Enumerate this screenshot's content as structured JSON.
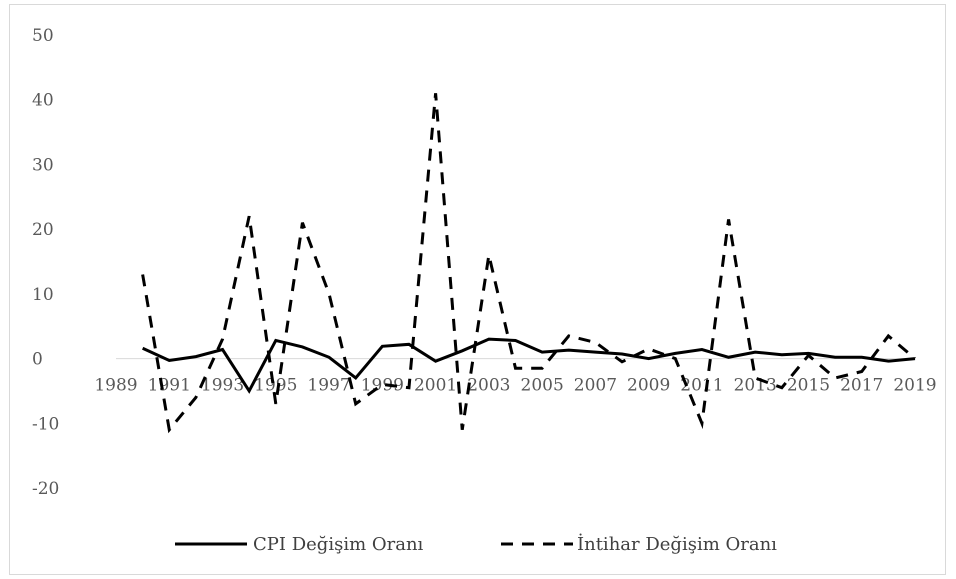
{
  "chart_data": {
    "type": "line",
    "title": "",
    "xlabel": "",
    "ylabel": "",
    "ylim": [
      -20,
      50
    ],
    "yticks": [
      -20,
      -10,
      0,
      10,
      20,
      30,
      40,
      50
    ],
    "x": [
      1990,
      1991,
      1992,
      1993,
      1994,
      1995,
      1996,
      1997,
      1998,
      1999,
      2000,
      2001,
      2002,
      2003,
      2004,
      2005,
      2006,
      2007,
      2008,
      2009,
      2010,
      2011,
      2012,
      2013,
      2014,
      2015,
      2016,
      2017,
      2018,
      2019
    ],
    "x_tick_labels": [
      "1989",
      "1991",
      "1993",
      "1995",
      "1997",
      "1999",
      "2001",
      "2003",
      "2005",
      "2007",
      "2009",
      "2011",
      "2013",
      "2015",
      "2017",
      "2019"
    ],
    "x_tick_years": [
      1989,
      1991,
      1993,
      1995,
      1997,
      1999,
      2001,
      2003,
      2005,
      2007,
      2009,
      2011,
      2013,
      2015,
      2017,
      2019
    ],
    "x_domain": [
      1989,
      2019
    ],
    "grid": false,
    "legend_position": "bottom",
    "series": [
      {
        "name": "CPI Değişim Oranı",
        "style": "solid",
        "color": "#000000",
        "values": [
          1.6,
          -0.3,
          0.3,
          1.4,
          -5.0,
          2.8,
          1.8,
          0.2,
          -3.0,
          1.9,
          2.2,
          -0.4,
          1.2,
          3.0,
          2.8,
          1.0,
          1.3,
          1.0,
          0.7,
          0.0,
          0.8,
          1.4,
          0.2,
          1.0,
          0.6,
          0.8,
          0.2,
          0.2,
          -0.4,
          0.0
        ]
      },
      {
        "name": "İntihar Değişim Oranı",
        "style": "dashed",
        "color": "#000000",
        "values": [
          13.0,
          -11.0,
          -6.0,
          3.0,
          22.0,
          -7.0,
          21.0,
          10.0,
          -7.0,
          -4.0,
          -4.5,
          41.0,
          -11.0,
          16.0,
          -1.5,
          -1.5,
          3.5,
          2.5,
          -0.5,
          1.5,
          0.0,
          -10.0,
          21.5,
          -3.0,
          -4.5,
          0.5,
          -3.0,
          -2.0,
          3.5,
          0.0
        ]
      }
    ]
  }
}
